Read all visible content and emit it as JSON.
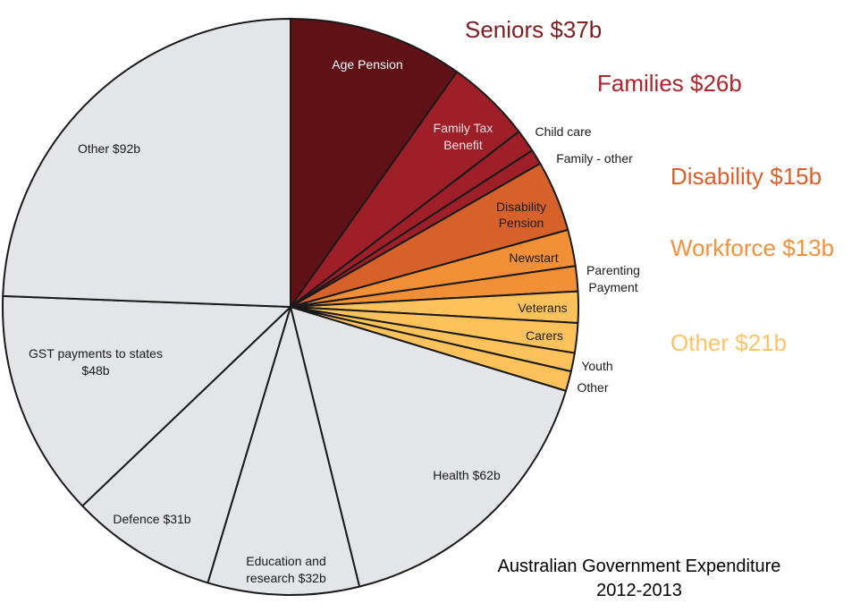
{
  "chart_data": {
    "type": "pie",
    "title_lines": [
      "Australian Government Expenditure",
      "2012-2013"
    ],
    "start_angle": "top",
    "direction": "clockwise",
    "groups": [
      {
        "key": "seniors",
        "label": "Seniors $37b",
        "value": 37,
        "color": "#5f1115",
        "text_color": "#7a1f22"
      },
      {
        "key": "families",
        "label": "Families $26b",
        "value": 26,
        "color": "#9e1f27",
        "text_color": "#a8262c"
      },
      {
        "key": "disability",
        "label": "Disability $15b",
        "value": 15,
        "color": "#d7612a",
        "text_color": "#d8602c"
      },
      {
        "key": "workforce",
        "label": "Workforce $13b",
        "value": 13,
        "color": "#f38f36",
        "text_color": "#f0923d"
      },
      {
        "key": "other_welfare",
        "label": "Other $21b",
        "value": 21,
        "color": "#fdc25c",
        "text_color": "#fbc46a"
      },
      {
        "key": "general",
        "label": "",
        "value": 265,
        "color": "#e4e5e8",
        "text_color": "#111111"
      }
    ],
    "slices": [
      {
        "label_lines": [
          "Age Pension"
        ],
        "value": 37,
        "group": "seniors"
      },
      {
        "label_lines": [
          "Family Tax",
          "Benefit"
        ],
        "value": 18,
        "group": "families"
      },
      {
        "label_lines": [
          "Child care"
        ],
        "value": 4.8,
        "group": "families"
      },
      {
        "label_lines": [
          "Family - other"
        ],
        "value": 3.2,
        "group": "families"
      },
      {
        "label_lines": [
          "Disability",
          "Pension"
        ],
        "value": 15,
        "group": "disability"
      },
      {
        "label_lines": [
          "Newstart"
        ],
        "value": 7.7,
        "group": "workforce"
      },
      {
        "label_lines": [
          "Parenting",
          "Payment"
        ],
        "value": 5.3,
        "group": "workforce"
      },
      {
        "label_lines": [
          "Veterans"
        ],
        "value": 6.6,
        "group": "other_welfare"
      },
      {
        "label_lines": [
          "Carers"
        ],
        "value": 6.3,
        "group": "other_welfare"
      },
      {
        "label_lines": [
          "Youth"
        ],
        "value": 3.9,
        "group": "other_welfare"
      },
      {
        "label_lines": [
          "Other"
        ],
        "value": 4.2,
        "group": "other_welfare"
      },
      {
        "label_lines": [
          "Health $62b"
        ],
        "value": 62,
        "group": "general"
      },
      {
        "label_lines": [
          "Education and",
          "research $32b"
        ],
        "value": 32,
        "group": "general"
      },
      {
        "label_lines": [
          "Defence $31b"
        ],
        "value": 31,
        "group": "general"
      },
      {
        "label_lines": [
          "GST payments to states",
          "$48b"
        ],
        "value": 48,
        "group": "general"
      },
      {
        "label_lines": [
          "Other $92b"
        ],
        "value": 92,
        "group": "general"
      }
    ]
  }
}
